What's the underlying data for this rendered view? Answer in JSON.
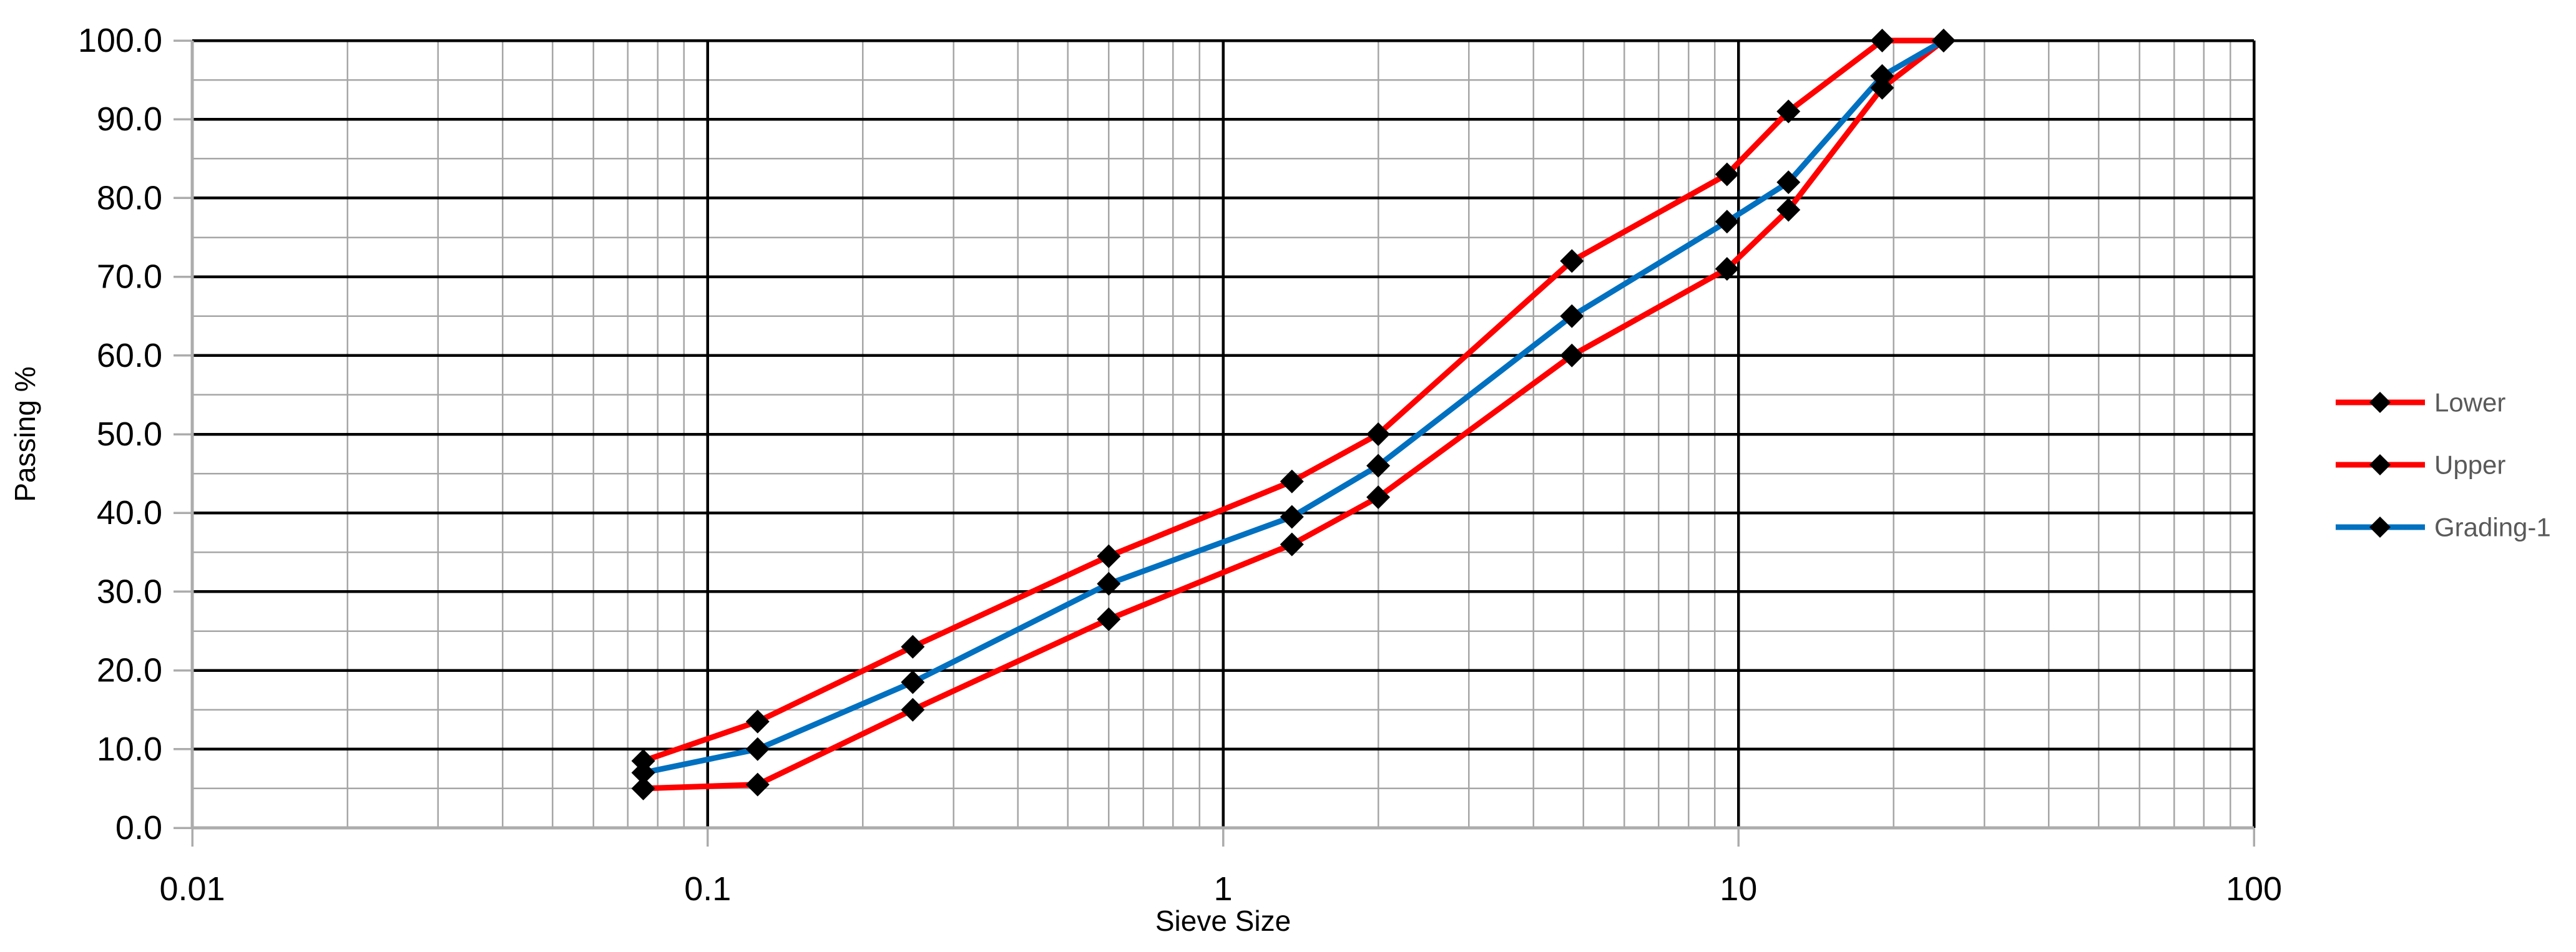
{
  "chart_data": {
    "type": "line",
    "title": "",
    "xlabel": "Sieve Size",
    "ylabel": "Passing %",
    "x_scale": "log",
    "xlim": [
      0.01,
      100
    ],
    "ylim": [
      0,
      100
    ],
    "y_major_step": 10,
    "y_minor_step": 5,
    "grid": "major-black, minor-gray, log-minor-verticals",
    "legend_position": "right-middle",
    "x_tick_values": [
      0.01,
      0.1,
      1,
      10,
      100
    ],
    "x_tick_labels": [
      "0.01",
      "0.1",
      "1",
      "10",
      "100"
    ],
    "y_tick_labels": [
      "100.0",
      "90.0",
      "80.0",
      "70.0",
      "60.0",
      "50.0",
      "40.0",
      "30.0",
      "20.0",
      "10.0",
      "0.0"
    ],
    "x": [
      0.075,
      0.125,
      0.25,
      0.6,
      1.36,
      2,
      4.75,
      9.5,
      12.5,
      19,
      25
    ],
    "series": [
      {
        "name": "Lower",
        "color": "#FF0000",
        "marker": "diamond",
        "marker_color": "#000000",
        "values": [
          5,
          5.5,
          15,
          26.5,
          36,
          42,
          60,
          71,
          78.5,
          94,
          100
        ]
      },
      {
        "name": "Upper",
        "color": "#FF0000",
        "marker": "diamond",
        "marker_color": "#000000",
        "values": [
          8.5,
          13.5,
          23,
          34.5,
          44,
          50,
          72,
          83,
          91,
          100,
          100
        ]
      },
      {
        "name": "Grading-1",
        "color": "#0070C0",
        "marker": "diamond",
        "marker_color": "#000000",
        "values": [
          7,
          10,
          18.5,
          31,
          39.5,
          46,
          65,
          77,
          82,
          95.5,
          100
        ]
      }
    ]
  },
  "styles": {
    "background": "#FFFFFF",
    "grid_major": "#000000",
    "grid_minor": "#A6A6A6",
    "axis_line": "#ACACAC",
    "tick_color": "#ACACAC",
    "tick_label_color": "#000000",
    "axis_title_color": "#000000",
    "legend_text_color": "#595959"
  }
}
